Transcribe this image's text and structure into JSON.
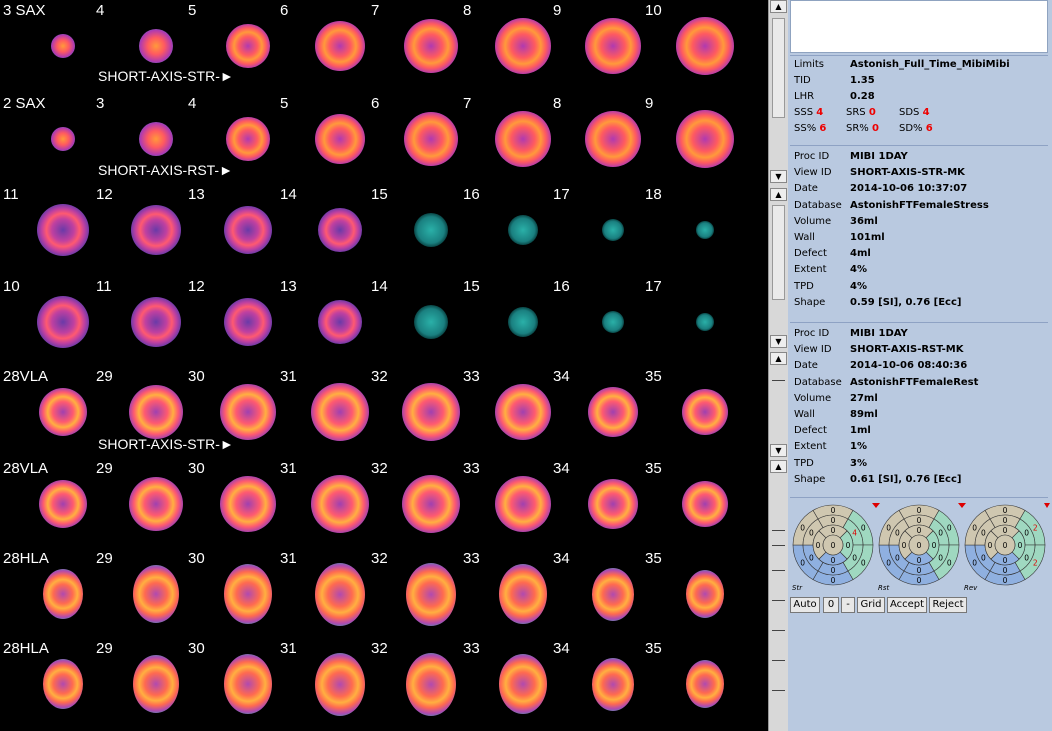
{
  "grid": {
    "rows": [
      {
        "labels": [
          "3 SAX",
          "4",
          "5",
          "6",
          "7",
          "8",
          "9",
          "10"
        ],
        "kind": "sax"
      },
      {
        "labels": [
          "2 SAX",
          "3",
          "4",
          "5",
          "6",
          "7",
          "8",
          "9"
        ],
        "kind": "sax"
      },
      {
        "labels": [
          "11",
          "12",
          "13",
          "14",
          "15",
          "16",
          "17",
          "18"
        ],
        "kind": "saxapex"
      },
      {
        "labels": [
          "10",
          "11",
          "12",
          "13",
          "14",
          "15",
          "16",
          "17"
        ],
        "kind": "saxapex"
      },
      {
        "labels": [
          "28VLA",
          "29",
          "30",
          "31",
          "32",
          "33",
          "34",
          "35"
        ],
        "kind": "vla"
      },
      {
        "labels": [
          "28VLA",
          "29",
          "30",
          "31",
          "32",
          "33",
          "34",
          "35"
        ],
        "kind": "vla"
      },
      {
        "labels": [
          "28HLA",
          "29",
          "30",
          "31",
          "32",
          "33",
          "34",
          "35"
        ],
        "kind": "hla"
      },
      {
        "labels": [
          "28HLA",
          "29",
          "30",
          "31",
          "32",
          "33",
          "34",
          "35"
        ],
        "kind": "hla"
      }
    ],
    "markers": [
      "SHORT-AXIS-STR-►",
      "SHORT-AXIS-RST-►",
      "SHORT-AXIS-STR-►"
    ]
  },
  "summary": {
    "limits_label": "Limits",
    "limits_value": "Astonish_Full_Time_MibiMibi",
    "tid_label": "TID",
    "tid_value": "1.35",
    "lhr_label": "LHR",
    "lhr_value": "0.28",
    "sss_label": "SSS",
    "sss_value": "4",
    "srs_label": "SRS",
    "srs_value": "0",
    "sds_label": "SDS",
    "sds_value": "4",
    "ssp_label": "SS%",
    "ssp_value": "6",
    "srp_label": "SR%",
    "srp_value": "0",
    "sdp_label": "SD%",
    "sdp_value": "6"
  },
  "stress": {
    "rows": [
      {
        "k": "Proc ID",
        "v": "MIBI 1DAY"
      },
      {
        "k": "View ID",
        "v": "SHORT-AXIS-STR-MK"
      },
      {
        "k": "Date",
        "v": "2014-10-06 10:37:07"
      },
      {
        "k": "Database",
        "v": "AstonishFTFemaleStress"
      },
      {
        "k": "Volume",
        "v": "36ml"
      },
      {
        "k": "Wall",
        "v": "101ml"
      },
      {
        "k": "Defect",
        "v": "4ml"
      },
      {
        "k": "Extent",
        "v": "4%"
      },
      {
        "k": "TPD",
        "v": "4%"
      },
      {
        "k": "Shape",
        "v": "0.59 [SI], 0.76 [Ecc]"
      }
    ]
  },
  "rest": {
    "rows": [
      {
        "k": "Proc ID",
        "v": "MIBI 1DAY"
      },
      {
        "k": "View ID",
        "v": "SHORT-AXIS-RST-MK"
      },
      {
        "k": "Date",
        "v": "2014-10-06 08:40:36"
      },
      {
        "k": "Database",
        "v": "AstonishFTFemaleRest"
      },
      {
        "k": "Volume",
        "v": "27ml"
      },
      {
        "k": "Wall",
        "v": "89ml"
      },
      {
        "k": "Defect",
        "v": "1ml"
      },
      {
        "k": "Extent",
        "v": "1%"
      },
      {
        "k": "TPD",
        "v": "3%"
      },
      {
        "k": "Shape",
        "v": "0.61 [SI], 0.76 [Ecc]"
      }
    ]
  },
  "polar": {
    "labels": [
      "Str",
      "Rst",
      "Rev"
    ],
    "nonzero_str": [
      "4"
    ],
    "nonzero_rev": [
      "2",
      "2"
    ]
  },
  "buttons": {
    "auto": "Auto",
    "zero": "0",
    "minus": "-",
    "grid": "Grid",
    "accept": "Accept",
    "reject": "Reject"
  },
  "colors": {
    "panel_bg": "#b9c9e0",
    "image_bg": "#000000",
    "value_red": "#e00000",
    "polar_gray": "#cfc7b0",
    "polar_green": "#9fd8c0",
    "polar_blue": "#8fb0e0"
  }
}
